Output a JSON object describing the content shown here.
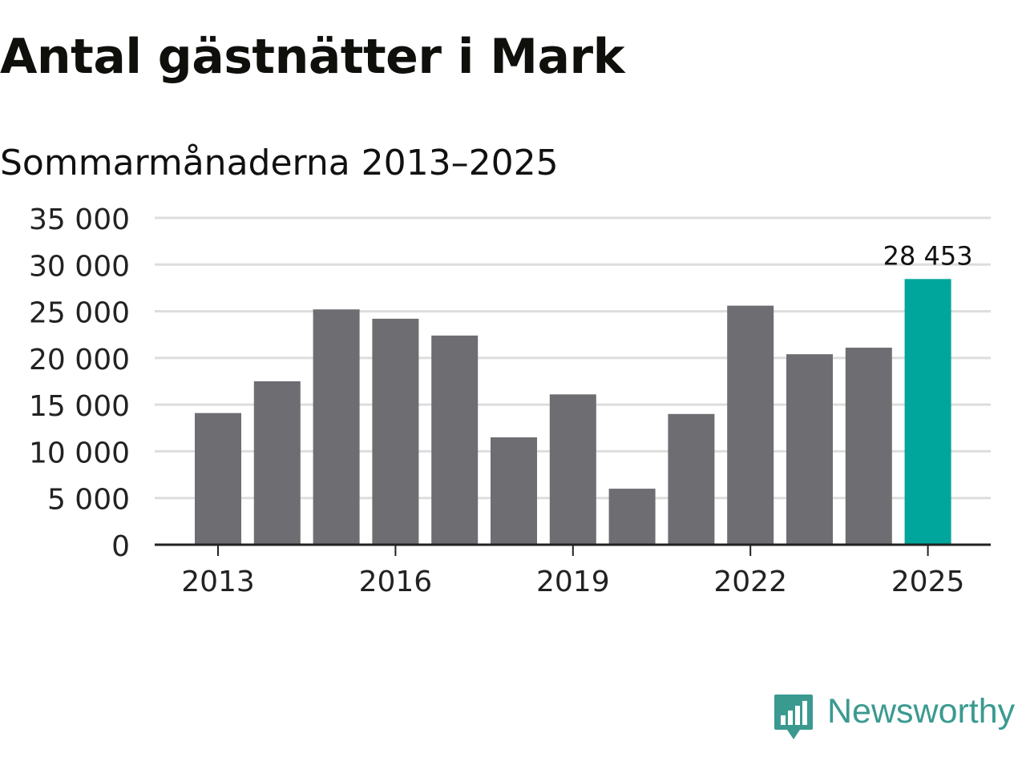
{
  "header": {
    "title": "Antal gästnätter i Mark",
    "subtitle": "Sommarmånaderna 2013–2025"
  },
  "brand": {
    "name": "Newsworthy",
    "color": "#3a9a90",
    "icon": "newsworthy-logo-icon"
  },
  "colors": {
    "bar": "#6e6d72",
    "highlight": "#00a59b",
    "grid": "#dddddd",
    "axis": "#222222"
  },
  "chart_data": {
    "type": "bar",
    "categories": [
      "2013",
      "2014",
      "2015",
      "2016",
      "2017",
      "2018",
      "2019",
      "2020",
      "2021",
      "2022",
      "2023",
      "2024",
      "2025"
    ],
    "values": [
      14100,
      17500,
      25200,
      24200,
      22400,
      11500,
      16100,
      6000,
      14000,
      25600,
      20400,
      21100,
      28453
    ],
    "highlight_index": 12,
    "annotations": [
      {
        "category": "2025",
        "label": "28 453"
      }
    ],
    "xticks": [
      "2013",
      "2016",
      "2019",
      "2022",
      "2025"
    ],
    "yticks": [
      0,
      5000,
      10000,
      15000,
      20000,
      25000,
      30000,
      35000
    ],
    "ytick_labels": [
      "0",
      "5 000",
      "10 000",
      "15 000",
      "20 000",
      "25 000",
      "30 000",
      "35 000"
    ],
    "ylim": [
      0,
      35000
    ],
    "grid": true,
    "legend": "none"
  }
}
